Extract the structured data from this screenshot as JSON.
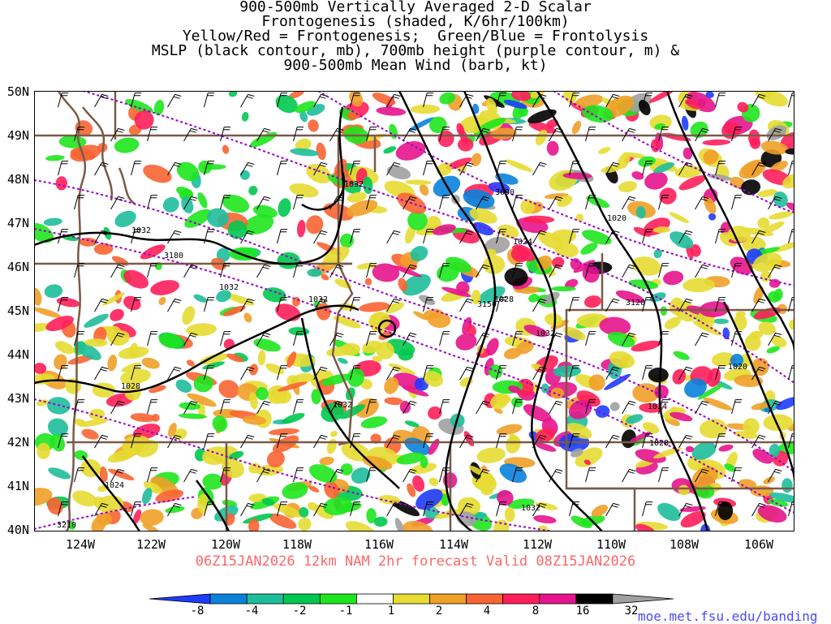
{
  "title": {
    "lines": [
      "900-500mb Vertically Averaged 2-D Scalar",
      "Frontogenesis (shaded, K/6hr/100km)",
      "Yellow/Red = Frontogenesis;  Green/Blue = Frontolysis",
      "MSLP (black contour, mb), 700mb height (purple contour, m) &",
      "900-500mb Mean Wind (barb, kt)"
    ]
  },
  "axes": {
    "lat_labels": [
      "50N",
      "49N",
      "48N",
      "47N",
      "46N",
      "45N",
      "44N",
      "43N",
      "42N",
      "41N",
      "40N"
    ],
    "lon_labels": [
      "124W",
      "122W",
      "120W",
      "118W",
      "116W",
      "114W",
      "112W",
      "110W",
      "108W",
      "106W"
    ]
  },
  "valid_line": "06Z15JAN2026 12km NAM 2hr forecast Valid 08Z15JAN2026",
  "colorbar": {
    "labels": [
      "-8",
      "-4",
      "-2",
      "-1",
      "1",
      "2",
      "4",
      "8",
      "16",
      "32"
    ],
    "colors": [
      "#1e3cff",
      "#0a82dc",
      "#1ebe9b",
      "#00c850",
      "#1ee61e",
      "#ffffff",
      "#e6dc32",
      "#f0a028",
      "#fa6432",
      "#ff1e5a",
      "#e6148c",
      "#000000",
      "#a0a0a0"
    ]
  },
  "contour_labels": {
    "mslp": [
      "1032",
      "1032",
      "1032",
      "1032",
      "1032",
      "1032",
      "1028",
      "1028",
      "1028",
      "1024",
      "1024",
      "1024",
      "1020",
      "1020",
      "1032"
    ],
    "height": [
      "3180",
      "3090",
      "3150",
      "3120",
      "3210"
    ]
  },
  "legend_colors": {
    "mslp_contour": "#000000",
    "height_contour": "#9900cc",
    "state_borders": "#7a5a48",
    "coastline": "#7a5a48"
  },
  "credit": "moe.met.fsu.edu/banding"
}
